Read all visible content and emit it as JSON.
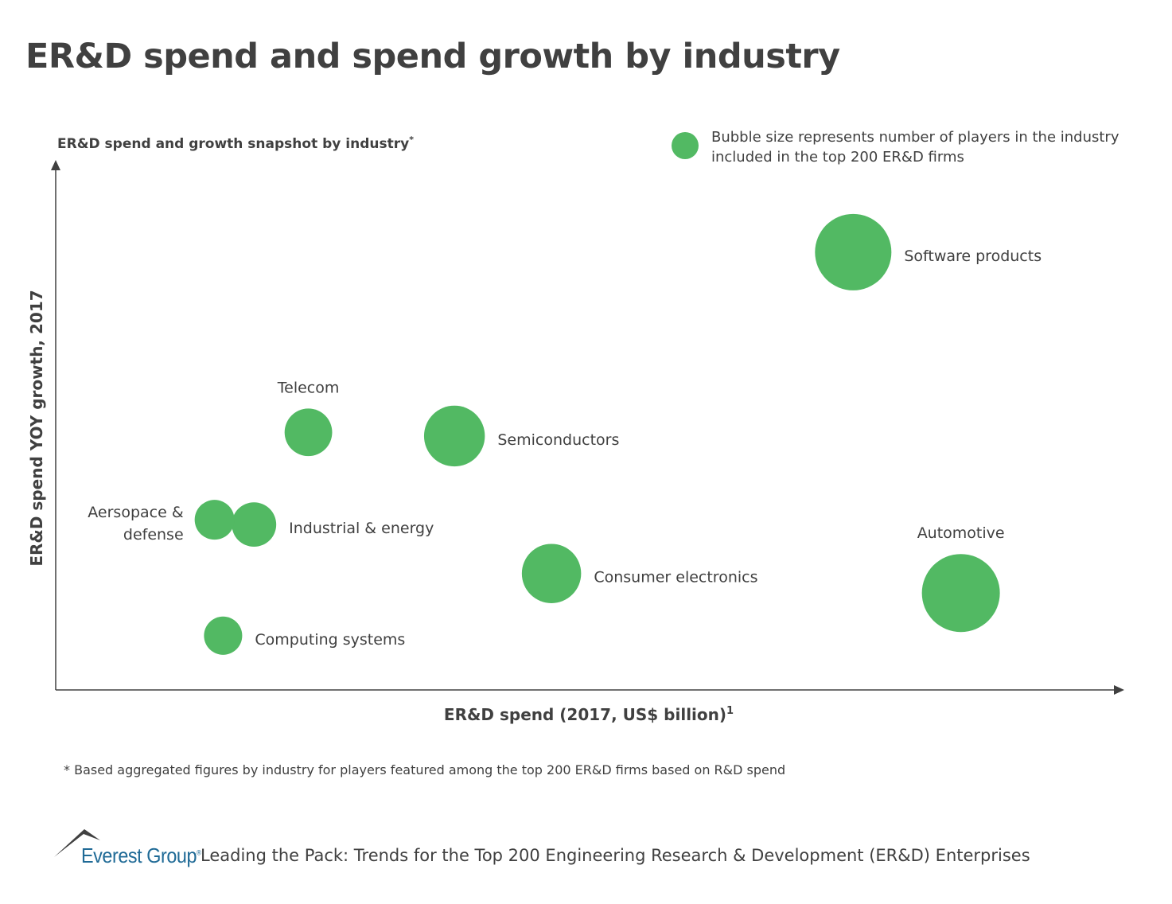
{
  "title": "ER&D spend and spend growth by industry",
  "chart_data": {
    "type": "bubble",
    "subtitle": "ER&D spend and growth snapshot by industry",
    "subtitle_mark": "*",
    "xlabel": "ER&D spend (2017, US$ billion)",
    "xlabel_mark": "1",
    "ylabel": "ER&D spend YOY growth, 2017",
    "xlim": [
      0,
      100
    ],
    "ylim": [
      0,
      100
    ],
    "axis_units": "relative (no tick values shown)",
    "grid": false,
    "bubble_color": "#52b963",
    "legend": {
      "text_lines": [
        "Bubble size represents number of players in the industry",
        "included in the top 200 ER&D firms"
      ],
      "position": "top-right"
    },
    "points": [
      {
        "label": [
          "Software products"
        ],
        "x": 74.8,
        "y": 83.1,
        "size": 98,
        "label_position": "right"
      },
      {
        "label": [
          "Automotive"
        ],
        "x": 84.9,
        "y": 18.4,
        "size": 100,
        "label_position": "top"
      },
      {
        "label": [
          "Semiconductors"
        ],
        "x": 37.4,
        "y": 48.2,
        "size": 78,
        "label_position": "right"
      },
      {
        "label": [
          "Consumer electronics"
        ],
        "x": 46.5,
        "y": 22.1,
        "size": 76,
        "label_position": "right"
      },
      {
        "label": [
          "Telecom"
        ],
        "x": 23.7,
        "y": 48.9,
        "size": 61,
        "label_position": "top"
      },
      {
        "label": [
          "Industrial & energy"
        ],
        "x": 18.6,
        "y": 31.4,
        "size": 57,
        "label_position": "right"
      },
      {
        "label": [
          "Aersopace &",
          "defense"
        ],
        "x": 14.9,
        "y": 32.3,
        "size": 51,
        "label_position": "left"
      },
      {
        "label": [
          "Computing systems"
        ],
        "x": 15.7,
        "y": 10.3,
        "size": 49,
        "label_position": "right"
      }
    ]
  },
  "footnote": "* Based aggregated figures by industry for players featured among the top 200 ER&D firms based on R&D spend",
  "footer": {
    "logo_text": "Everest Group",
    "logo_mark": "®",
    "report_title": "Leading the Pack: Trends for the Top 200 Engineering Research & Development (ER&D) Enterprises"
  }
}
